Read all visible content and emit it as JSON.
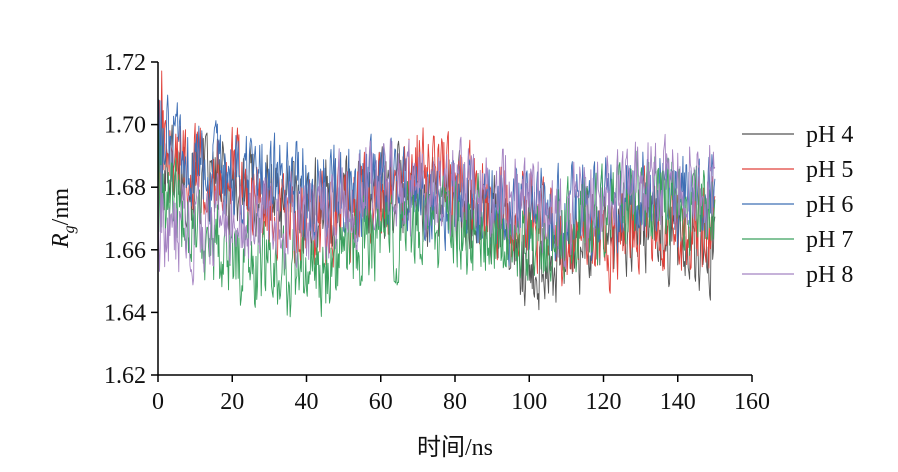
{
  "chart_data": {
    "type": "line",
    "title": "",
    "ylabel_main": "R",
    "ylabel_sub": "g",
    "ylabel_suffix": "/nm",
    "xlabel": "时间/ns",
    "xlim": [
      0,
      160
    ],
    "ylim": [
      1.62,
      1.72
    ],
    "x_ticks": [
      0,
      20,
      40,
      60,
      80,
      100,
      120,
      140,
      160
    ],
    "y_ticks": [
      "1.62",
      "1.64",
      "1.66",
      "1.68",
      "1.70",
      "1.72"
    ],
    "grid": false,
    "legend_position": "right",
    "x_range_of_data": [
      0,
      150
    ],
    "series": [
      {
        "name": "pH 4",
        "color": "#555555",
        "x": [
          0,
          10,
          20,
          30,
          40,
          50,
          60,
          70,
          80,
          90,
          100,
          110,
          120,
          130,
          140,
          150
        ],
        "values": [
          1.69,
          1.682,
          1.68,
          1.678,
          1.674,
          1.676,
          1.68,
          1.678,
          1.676,
          1.67,
          1.655,
          1.66,
          1.665,
          1.668,
          1.662,
          1.66
        ]
      },
      {
        "name": "pH 5",
        "color": "#e0413a",
        "x": [
          0,
          10,
          20,
          30,
          40,
          50,
          60,
          70,
          80,
          90,
          100,
          110,
          120,
          130,
          140,
          150
        ],
        "values": [
          1.69,
          1.688,
          1.684,
          1.672,
          1.666,
          1.672,
          1.676,
          1.688,
          1.68,
          1.674,
          1.67,
          1.664,
          1.662,
          1.67,
          1.668,
          1.668
        ]
      },
      {
        "name": "pH 6",
        "color": "#3f6fb5",
        "x": [
          0,
          10,
          20,
          30,
          40,
          50,
          60,
          70,
          80,
          90,
          100,
          110,
          120,
          130,
          140,
          150
        ],
        "values": [
          1.695,
          1.686,
          1.68,
          1.684,
          1.68,
          1.678,
          1.679,
          1.678,
          1.677,
          1.674,
          1.67,
          1.672,
          1.674,
          1.678,
          1.676,
          1.676
        ]
      },
      {
        "name": "pH 7",
        "color": "#3aa15e",
        "x": [
          0,
          10,
          20,
          30,
          40,
          50,
          60,
          70,
          80,
          90,
          100,
          110,
          120,
          130,
          140,
          150
        ],
        "values": [
          1.678,
          1.668,
          1.658,
          1.655,
          1.652,
          1.66,
          1.664,
          1.666,
          1.668,
          1.666,
          1.664,
          1.666,
          1.672,
          1.676,
          1.674,
          1.672
        ]
      },
      {
        "name": "pH 8",
        "color": "#a583c2",
        "x": [
          0,
          10,
          20,
          30,
          40,
          50,
          60,
          70,
          80,
          90,
          100,
          110,
          120,
          130,
          140,
          150
        ],
        "values": [
          1.665,
          1.666,
          1.668,
          1.67,
          1.668,
          1.676,
          1.68,
          1.678,
          1.678,
          1.68,
          1.674,
          1.672,
          1.676,
          1.68,
          1.68,
          1.682
        ]
      }
    ]
  }
}
